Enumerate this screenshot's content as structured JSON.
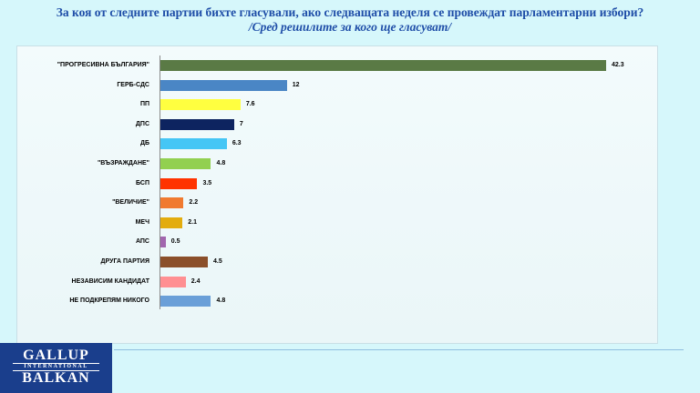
{
  "title": "За коя от следните партии бихте  гласували,  ако следващата неделя се провеждат парламентарни избори?",
  "subtitle": "/Сред решилите за кого ще гласуват/",
  "logo": {
    "line1": "GALLUP",
    "line2": "INTERNATIONAL",
    "line3": "BALKAN"
  },
  "chart_data": {
    "type": "bar",
    "orientation": "horizontal",
    "categories": [
      "\"ПРОГРЕСИВНА БЪЛГАРИЯ\"",
      "ГЕРБ-СДС",
      "ПП",
      "ДПС",
      "ДБ",
      "\"ВЪЗРАЖДАНЕ\"",
      "БСП",
      "\"ВЕЛИЧИЕ\"",
      "МЕЧ",
      "АПС",
      "ДРУГА ПАРТИЯ",
      "НЕЗАВИСИМ КАНДИДАТ",
      "НЕ ПОДКРЕПЯМ НИКОГО"
    ],
    "values": [
      42.3,
      12,
      7.6,
      7,
      6.3,
      4.8,
      3.5,
      2.2,
      2.1,
      0.5,
      4.5,
      2.4,
      4.8
    ],
    "labels": [
      "42.3",
      "12",
      "7.6",
      "7",
      "6.3",
      "4.8",
      "3.5",
      "2.2",
      "2.1",
      "0.5",
      "4.5",
      "2.4",
      "4.8"
    ],
    "colors": [
      "#5a7a45",
      "#4a86c5",
      "#ffff40",
      "#0d2460",
      "#45c6f5",
      "#92d050",
      "#ff3300",
      "#f07a30",
      "#e3ac0f",
      "#a166ae",
      "#8b4f2a",
      "#ff8f92",
      "#6a9fd8"
    ],
    "xlim": [
      0,
      45
    ],
    "grid": false,
    "legend": "none"
  }
}
